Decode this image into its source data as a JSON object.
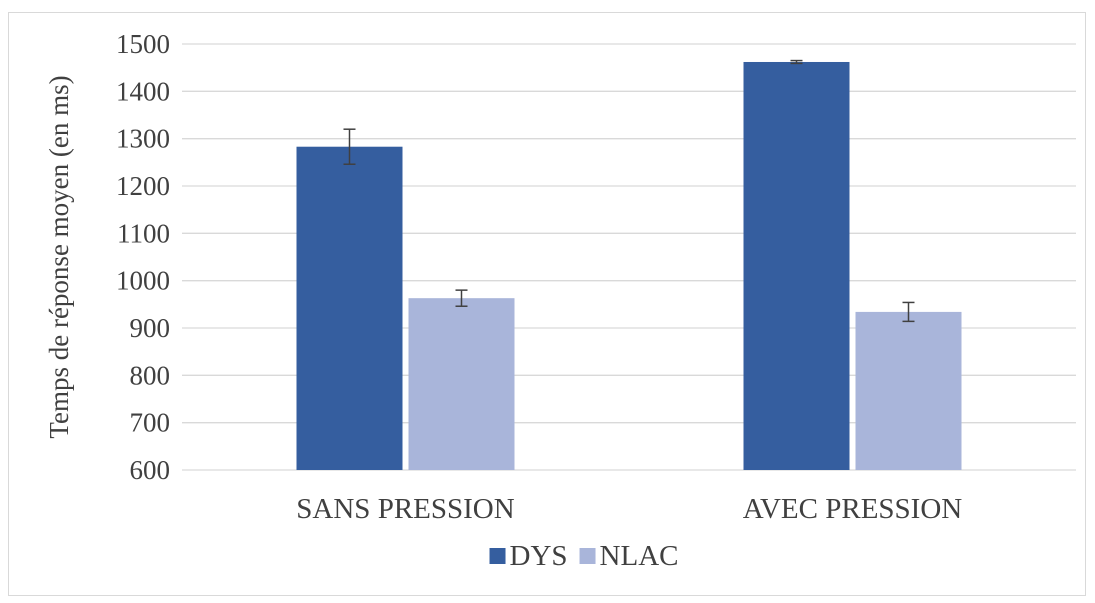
{
  "chart_data": {
    "type": "bar",
    "title": "",
    "xlabel": "",
    "ylabel": "Temps de réponse moyen (en ms)",
    "ylim": [
      600,
      1500
    ],
    "ytick_step": 100,
    "grid": true,
    "legend_position": "bottom",
    "categories": [
      "SANS PRESSION",
      "AVEC PRESSION"
    ],
    "series": [
      {
        "name": "DYS",
        "color": "#355E9F",
        "values": [
          1283,
          1462
        ],
        "error": [
          37,
          3
        ]
      },
      {
        "name": "NLAC",
        "color": "#A9B5DA",
        "values": [
          963,
          934
        ],
        "error": [
          17,
          20
        ]
      }
    ],
    "gridline_color": "#d9d9d9",
    "errorbar_color": "#404040"
  }
}
